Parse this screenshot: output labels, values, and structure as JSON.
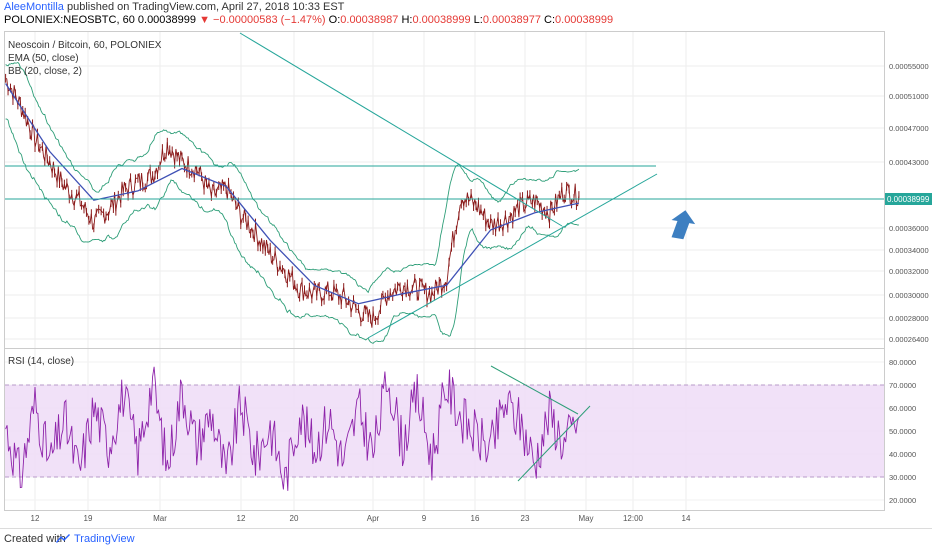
{
  "header": {
    "author": "AleeMontilla",
    "published": " published on TradingView.com, April 27, 2018 10:33 EST"
  },
  "symbol_line": {
    "symbol": "POLONIEX:NEOSBTC, 60",
    "last": "0.00038999",
    "arrow": "▼",
    "change": "−0.00000583 (−1.47%)",
    "o_label": "O:",
    "o_value": "0.00038987",
    "h_label": "H:",
    "h_value": "0.00038999",
    "l_label": "L:",
    "l_value": "0.00038977",
    "c_label": "C:",
    "c_value": "0.00038999"
  },
  "legend": {
    "title": "Neoscoin / Bitcoin, 60, POLONIEX",
    "ema": "EMA (50, close)",
    "bb": "BB (20, close, 2)",
    "rsi": "RSI (14, close)"
  },
  "footer": {
    "created_with": "Created with",
    "brand": "TradingView"
  },
  "colors": {
    "trendline": "#26a69a",
    "bb_band": "#2e9e78",
    "price": "#8b1a1a",
    "ema": "#3f51b5",
    "rsi_line": "#8e24aa",
    "rsi_zone": "#efdcf7",
    "arrow": "#3d7fc1",
    "price_badge": "#26a69a"
  },
  "chart_data": [
    {
      "type": "line",
      "title": "Neoscoin / Bitcoin, 60, POLONIEX",
      "x_tick_labels": [
        "12",
        "19",
        "Mar",
        "12",
        "20",
        "Apr",
        "9",
        "16",
        "23",
        "May",
        "12:00",
        "14"
      ],
      "y_tick_labels": [
        "0.00055000",
        "0.00051000",
        "0.00047000",
        "0.00043000",
        "0.00038999",
        "0.00036000",
        "0.00034000",
        "0.00032000",
        "0.00030000",
        "0.00028000",
        "0.00026400"
      ],
      "last_price": 0.00038999,
      "series": [
        {
          "name": "NEOSBTC",
          "x_dates": [
            "2018-02-08",
            "2018-02-10",
            "2018-02-12",
            "2018-02-14",
            "2018-02-16",
            "2018-02-18",
            "2018-02-20",
            "2018-02-22",
            "2018-02-24",
            "2018-02-26",
            "2018-02-28",
            "2018-03-02",
            "2018-03-04",
            "2018-03-06",
            "2018-03-08",
            "2018-03-10",
            "2018-03-12",
            "2018-03-14",
            "2018-03-16",
            "2018-03-18",
            "2018-03-20",
            "2018-03-22",
            "2018-03-24",
            "2018-03-26",
            "2018-03-28",
            "2018-03-30",
            "2018-04-01",
            "2018-04-03",
            "2018-04-05",
            "2018-04-07",
            "2018-04-09",
            "2018-04-11",
            "2018-04-13",
            "2018-04-15",
            "2018-04-17",
            "2018-04-19",
            "2018-04-21",
            "2018-04-23",
            "2018-04-25",
            "2018-04-27"
          ],
          "values": [
            0.000538,
            0.0005,
            0.000455,
            0.000428,
            0.0004,
            0.000385,
            0.000362,
            0.000375,
            0.000395,
            0.000405,
            0.000412,
            0.000448,
            0.000428,
            0.00042,
            0.00039,
            0.000398,
            0.00037,
            0.000352,
            0.000332,
            0.000318,
            0.000302,
            0.000298,
            0.0003,
            0.000295,
            0.000284,
            0.000278,
            0.000298,
            0.000305,
            0.000302,
            0.000298,
            0.000312,
            0.00039,
            0.00038,
            0.00036,
            0.000365,
            0.000378,
            0.000385,
            0.000372,
            0.000395,
            0.00039
          ]
        },
        {
          "name": "EMA (50, close)",
          "x_dates": [
            "2018-02-08",
            "2018-02-14",
            "2018-02-20",
            "2018-02-26",
            "2018-03-04",
            "2018-03-10",
            "2018-03-16",
            "2018-03-22",
            "2018-03-28",
            "2018-04-03",
            "2018-04-09",
            "2018-04-15",
            "2018-04-21",
            "2018-04-27"
          ],
          "values": [
            0.00053,
            0.00044,
            0.000385,
            0.000395,
            0.00042,
            0.0004,
            0.000345,
            0.000305,
            0.00029,
            0.000298,
            0.000305,
            0.000355,
            0.000372,
            0.000382
          ]
        }
      ],
      "annotations": [
        "horizontal line 0.00042600",
        "horizontal line 0.00038999",
        "descending trendline",
        "ascending trendline",
        "up arrow"
      ]
    },
    {
      "type": "line",
      "title": "RSI (14, close)",
      "x_tick_labels": [
        "12",
        "19",
        "Mar",
        "12",
        "20",
        "Apr",
        "9",
        "16",
        "23",
        "May",
        "12:00",
        "14"
      ],
      "y_tick_labels": [
        "80.0000",
        "70.0000",
        "60.0000",
        "50.0000",
        "40.0000",
        "30.0000",
        "20.0000"
      ],
      "ylim": [
        20,
        80
      ],
      "bands": [
        30,
        70
      ],
      "series": [
        {
          "name": "RSI",
          "x_dates": [
            "2018-02-08",
            "2018-02-10",
            "2018-02-12",
            "2018-02-14",
            "2018-02-16",
            "2018-02-18",
            "2018-02-20",
            "2018-02-22",
            "2018-02-24",
            "2018-02-26",
            "2018-02-28",
            "2018-03-02",
            "2018-03-04",
            "2018-03-06",
            "2018-03-08",
            "2018-03-10",
            "2018-03-12",
            "2018-03-14",
            "2018-03-16",
            "2018-03-18",
            "2018-03-20",
            "2018-03-22",
            "2018-03-24",
            "2018-03-26",
            "2018-03-28",
            "2018-03-30",
            "2018-04-01",
            "2018-04-03",
            "2018-04-05",
            "2018-04-07",
            "2018-04-09",
            "2018-04-11",
            "2018-04-13",
            "2018-04-15",
            "2018-04-17",
            "2018-04-19",
            "2018-04-21",
            "2018-04-23",
            "2018-04-25",
            "2018-04-27"
          ],
          "values": [
            52,
            30,
            62,
            36,
            55,
            32,
            60,
            44,
            66,
            40,
            72,
            34,
            68,
            44,
            58,
            30,
            62,
            38,
            52,
            28,
            58,
            42,
            56,
            36,
            60,
            40,
            74,
            44,
            66,
            38,
            70,
            56,
            48,
            42,
            62,
            54,
            36,
            58,
            44,
            56
          ]
        }
      ],
      "annotations": [
        "converging triangle lines"
      ]
    }
  ]
}
